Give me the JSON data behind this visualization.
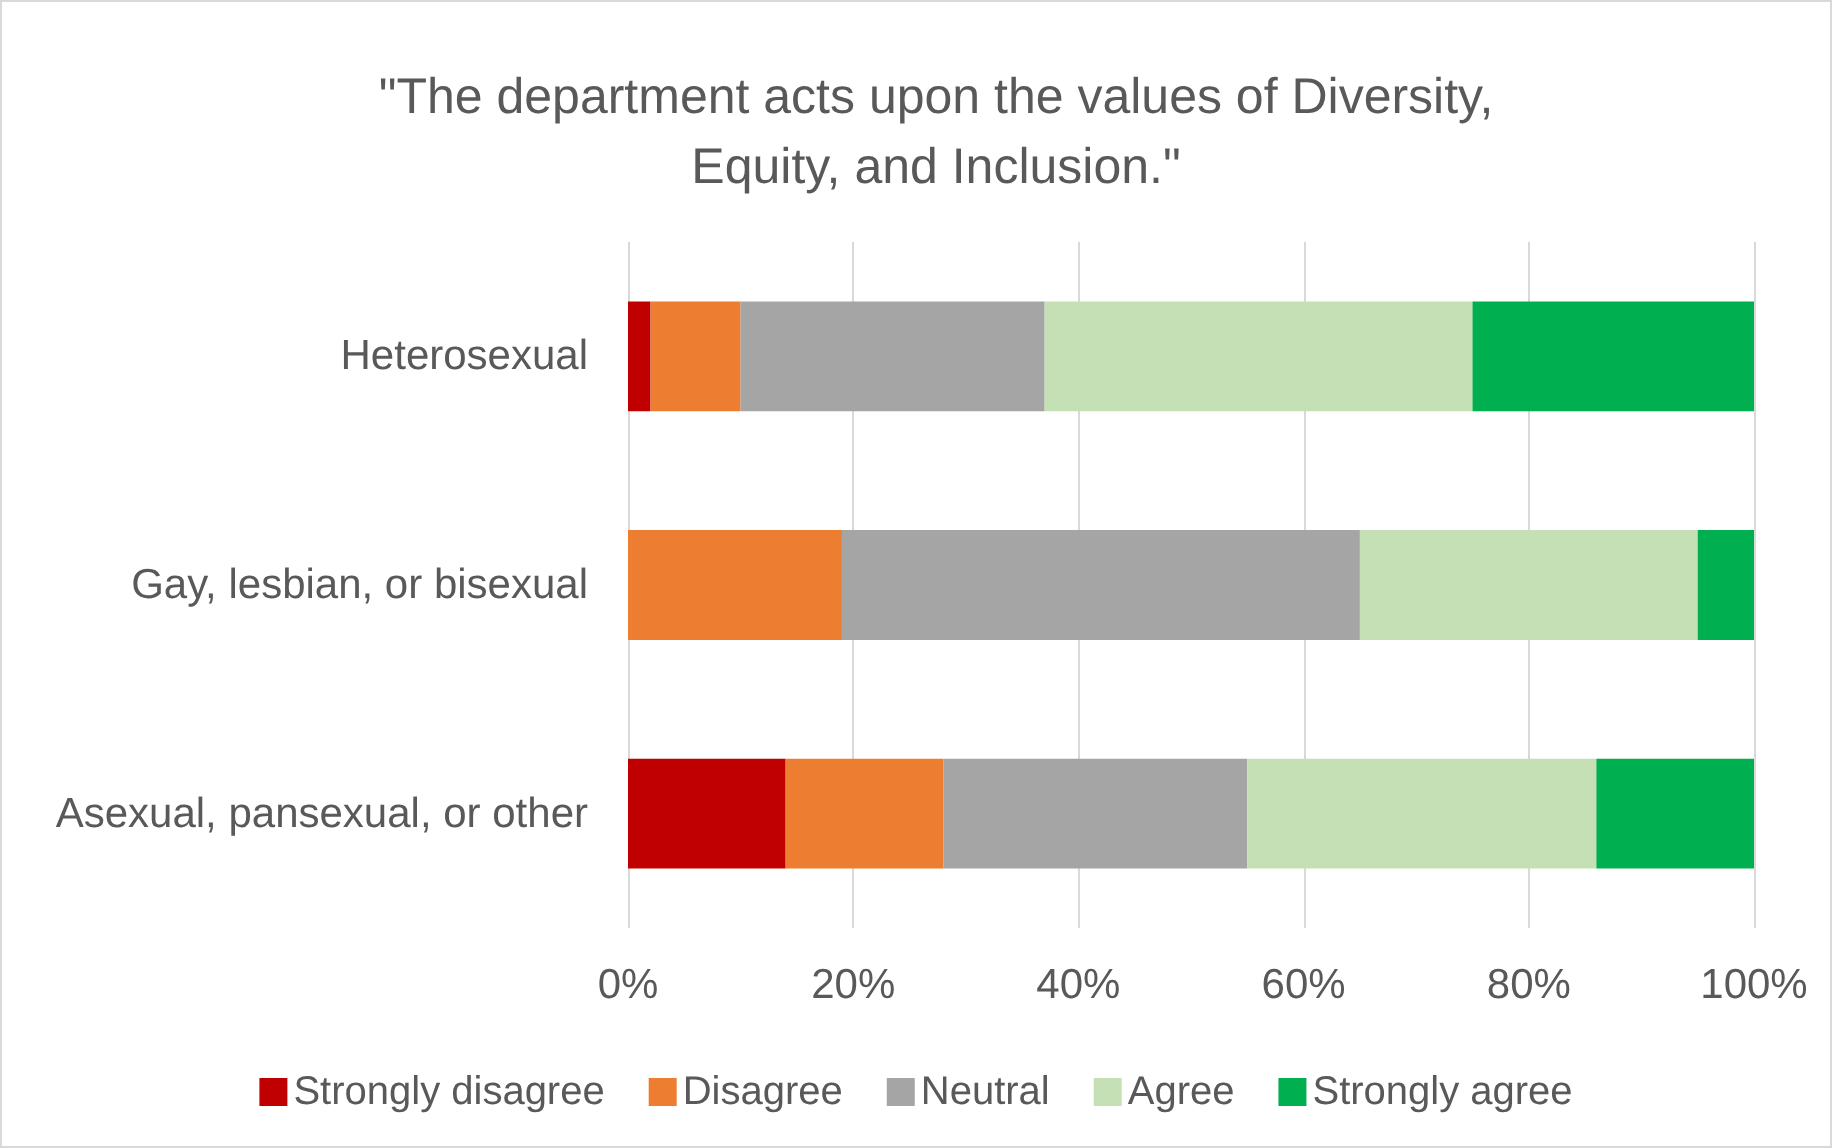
{
  "chart_data": {
    "type": "bar",
    "orientation": "horizontal",
    "stacked": true,
    "title": "\"The department acts upon the values of Diversity,\nEquity, and Inclusion.\"",
    "categories": [
      "Heterosexual",
      "Gay, lesbian, or bisexual",
      "Asexual, pansexual, or other"
    ],
    "series": [
      {
        "name": "Strongly disagree",
        "color": "#c00000",
        "values": [
          2,
          0,
          14
        ]
      },
      {
        "name": "Disagree",
        "color": "#ed7d31",
        "values": [
          8,
          19,
          14
        ]
      },
      {
        "name": "Neutral",
        "color": "#a5a5a5",
        "values": [
          27,
          46,
          27
        ]
      },
      {
        "name": "Agree",
        "color": "#c5e0b4",
        "values": [
          38,
          30,
          31
        ]
      },
      {
        "name": "Strongly agree",
        "color": "#00b050",
        "values": [
          25,
          5,
          14
        ]
      }
    ],
    "xlim": [
      0,
      100
    ],
    "xticks": [
      {
        "value": 0,
        "label": "0%"
      },
      {
        "value": 20,
        "label": "20%"
      },
      {
        "value": 40,
        "label": "40%"
      },
      {
        "value": 60,
        "label": "60%"
      },
      {
        "value": 80,
        "label": "80%"
      },
      {
        "value": 100,
        "label": "100%"
      }
    ],
    "grid": "x",
    "legend": "bottom"
  }
}
